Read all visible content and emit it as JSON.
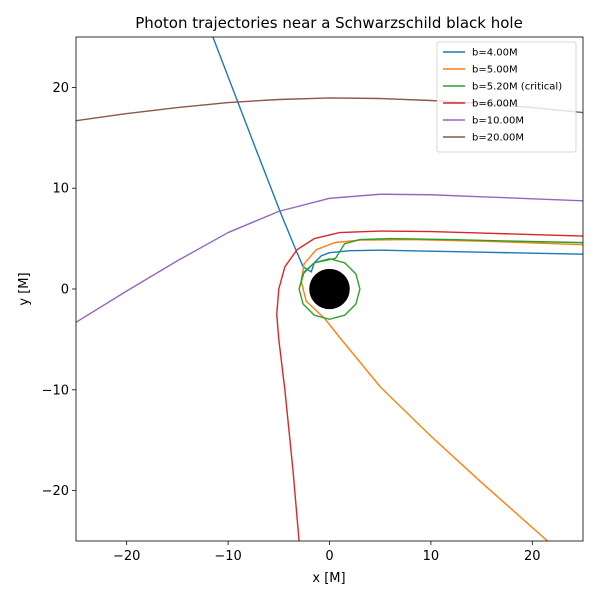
{
  "chart_data": {
    "type": "line",
    "title": "Photon trajectories near a Schwarzschild black hole",
    "xlabel": "x [M]",
    "ylabel": "y [M]",
    "xlim": [
      -25,
      25
    ],
    "ylim": [
      -25,
      25
    ],
    "xticks": [
      -20,
      -10,
      0,
      10,
      20
    ],
    "yticks": [
      -20,
      -10,
      0,
      10,
      20
    ],
    "xtick_labels": [
      "−20",
      "−10",
      "0",
      "10",
      "20"
    ],
    "ytick_labels": [
      "−20",
      "−10",
      "0",
      "10",
      "20"
    ],
    "grid": false,
    "legend_position": "top-right",
    "black_hole": {
      "center": [
        0,
        0
      ],
      "radius": 2,
      "color": "#000000"
    },
    "series": [
      {
        "name": "b=4.00M",
        "color": "#1f77b4",
        "points": [
          [
            -11.5,
            25
          ],
          [
            -7.5,
            14.5
          ],
          [
            -4.8,
            7.5
          ],
          [
            -3.2,
            3.6
          ],
          [
            -2.6,
            2.2
          ],
          [
            -1.8,
            1.7
          ],
          [
            -1.5,
            2.6
          ],
          [
            -0.8,
            3.3
          ],
          [
            0,
            3.6
          ],
          [
            2,
            3.8
          ],
          [
            5,
            3.85
          ],
          [
            10,
            3.75
          ],
          [
            15,
            3.65
          ],
          [
            20,
            3.55
          ],
          [
            25,
            3.45
          ]
        ]
      },
      {
        "name": "b=5.00M",
        "color": "#ff7f0e",
        "points": [
          [
            21.5,
            -25
          ],
          [
            15,
            -19.2
          ],
          [
            10,
            -14.6
          ],
          [
            5,
            -9.7
          ],
          [
            1,
            -4.8
          ],
          [
            -0.5,
            -2.9
          ],
          [
            -2.3,
            -1.2
          ],
          [
            -2.8,
            0.8
          ],
          [
            -2.5,
            2.5
          ],
          [
            -1.3,
            3.9
          ],
          [
            0.5,
            4.6
          ],
          [
            3,
            4.85
          ],
          [
            8,
            4.9
          ],
          [
            15,
            4.75
          ],
          [
            25,
            4.4
          ]
        ]
      },
      {
        "name": "b=5.20M (critical)",
        "color": "#2ca02c",
        "points": [
          [
            25,
            4.6
          ],
          [
            18,
            4.75
          ],
          [
            12,
            4.9
          ],
          [
            6,
            5.0
          ],
          [
            3,
            4.9
          ],
          [
            1.5,
            4.5
          ],
          [
            0.6,
            3.05
          ],
          [
            -1.5,
            2.6
          ],
          [
            -2.6,
            1.5
          ],
          [
            -3.0,
            0
          ],
          [
            -2.6,
            -1.5
          ],
          [
            -1.5,
            -2.6
          ],
          [
            0,
            -3.0
          ],
          [
            1.5,
            -2.6
          ],
          [
            2.6,
            -1.5
          ],
          [
            3.0,
            0
          ],
          [
            2.6,
            1.5
          ],
          [
            1.5,
            2.6
          ],
          [
            0,
            3.0
          ],
          [
            -1.5,
            2.6
          ],
          [
            -2.6,
            1.5
          ],
          [
            -3.0,
            0
          ],
          [
            -2.6,
            -1.5
          ],
          [
            -1.5,
            -2.6
          ],
          [
            0,
            -3.0
          ],
          [
            1.5,
            -2.6
          ],
          [
            2.6,
            -1.5
          ],
          [
            3.0,
            0
          ],
          [
            2.6,
            1.5
          ],
          [
            1.5,
            2.6
          ],
          [
            0,
            3.0
          ],
          [
            -1.5,
            2.6
          ],
          [
            -2.5,
            1.7
          ],
          [
            -2.9,
            0.3
          ]
        ]
      },
      {
        "name": "b=6.00M",
        "color": "#d62728",
        "points": [
          [
            -3.0,
            -25
          ],
          [
            -3.6,
            -18
          ],
          [
            -4.4,
            -10
          ],
          [
            -5.0,
            -5
          ],
          [
            -5.2,
            -2.5
          ],
          [
            -5.0,
            0
          ],
          [
            -4.4,
            2.2
          ],
          [
            -3.2,
            3.9
          ],
          [
            -1.5,
            5.0
          ],
          [
            1,
            5.6
          ],
          [
            5,
            5.75
          ],
          [
            10,
            5.7
          ],
          [
            15,
            5.55
          ],
          [
            20,
            5.4
          ],
          [
            25,
            5.25
          ]
        ]
      },
      {
        "name": "b=10.00M",
        "color": "#9467bd",
        "points": [
          [
            -25,
            -3.3
          ],
          [
            -20,
            -0.2
          ],
          [
            -15,
            2.8
          ],
          [
            -10,
            5.6
          ],
          [
            -5,
            7.7
          ],
          [
            0,
            9.0
          ],
          [
            5,
            9.4
          ],
          [
            10,
            9.35
          ],
          [
            15,
            9.15
          ],
          [
            20,
            8.95
          ],
          [
            25,
            8.75
          ]
        ]
      },
      {
        "name": "b=20.00M",
        "color": "#8c564b",
        "points": [
          [
            -25,
            16.7
          ],
          [
            -20,
            17.4
          ],
          [
            -15,
            18.0
          ],
          [
            -10,
            18.5
          ],
          [
            -5,
            18.8
          ],
          [
            0,
            18.95
          ],
          [
            5,
            18.9
          ],
          [
            10,
            18.7
          ],
          [
            15,
            18.4
          ],
          [
            20,
            18.0
          ],
          [
            25,
            17.5
          ]
        ]
      }
    ]
  }
}
